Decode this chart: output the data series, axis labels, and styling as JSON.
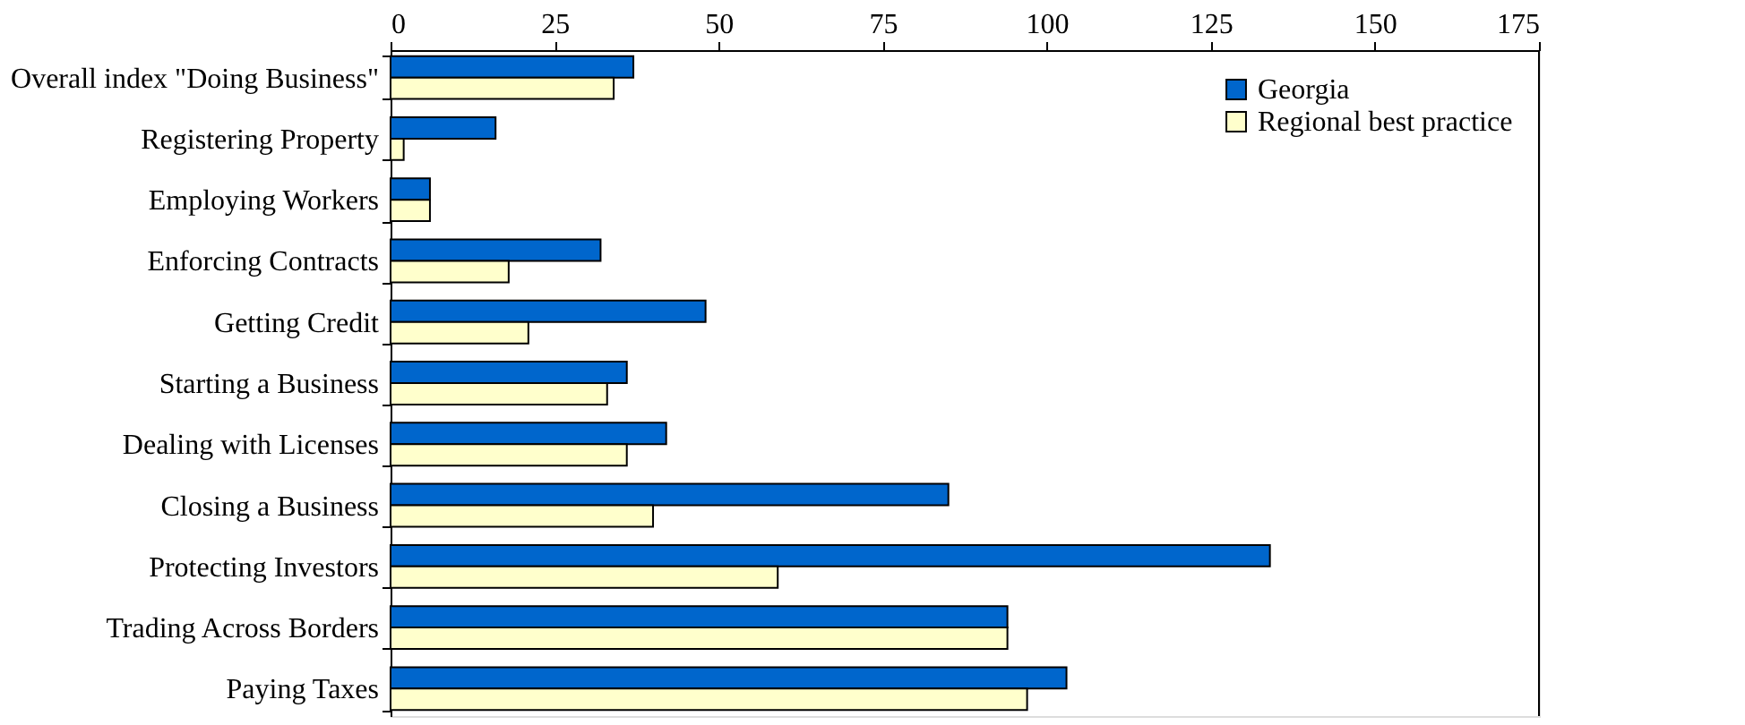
{
  "chart_data": {
    "type": "bar",
    "orientation": "horizontal",
    "categories": [
      "Overall index \"Doing Business\"",
      "Registering Property",
      "Employing Workers",
      "Enforcing Contracts",
      "Getting Credit",
      "Starting a Business",
      "Dealing with Licenses",
      "Closing a Business",
      "Protecting Investors",
      "Trading Across Borders",
      "Paying Taxes"
    ],
    "series": [
      {
        "name": "Georgia",
        "color": "#0066cc",
        "values": [
          37,
          16,
          6,
          32,
          48,
          36,
          42,
          85,
          134,
          94,
          103
        ]
      },
      {
        "name": "Regional best practice",
        "color": "#ffffcc",
        "values": [
          34,
          2,
          6,
          18,
          21,
          33,
          36,
          40,
          59,
          94,
          97
        ]
      }
    ],
    "xlim": [
      0,
      175
    ],
    "xticks": [
      0,
      25,
      50,
      75,
      100,
      125,
      150,
      175
    ],
    "legend": "top right",
    "grid": false
  }
}
